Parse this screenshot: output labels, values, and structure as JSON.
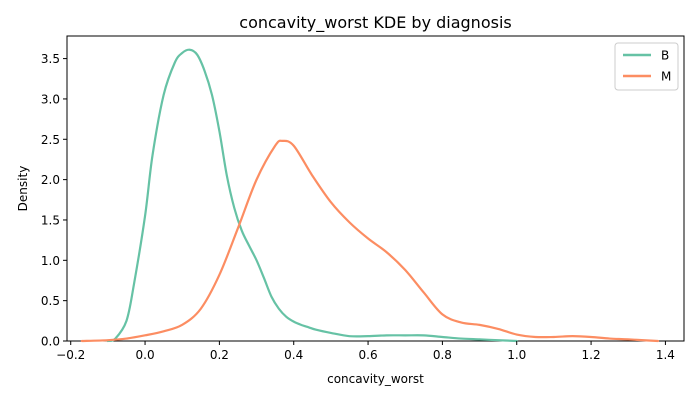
{
  "chart_data": {
    "type": "line",
    "title": "concavity_worst KDE by diagnosis",
    "xlabel": "concavity_worst",
    "ylabel": "Density",
    "xlim": [
      -0.21,
      1.45
    ],
    "ylim": [
      0,
      3.78
    ],
    "xticks": [
      -0.2,
      0.0,
      0.2,
      0.4,
      0.6,
      0.8,
      1.0,
      1.2,
      1.4
    ],
    "xtick_labels": [
      "−0.2",
      "0.0",
      "0.2",
      "0.4",
      "0.6",
      "0.8",
      "1.0",
      "1.2",
      "1.4"
    ],
    "yticks": [
      0,
      0.5,
      1.0,
      1.5,
      2.0,
      2.5,
      3.0,
      3.5
    ],
    "ytick_labels": [
      "0.0",
      "0.5",
      "1.0",
      "1.5",
      "2.0",
      "2.5",
      "3.0",
      "3.5"
    ],
    "grid": false,
    "legend_position": "top-right",
    "series": [
      {
        "name": "B",
        "color": "#66c2a5",
        "x": [
          -0.1,
          -0.08,
          -0.05,
          -0.03,
          0.0,
          0.02,
          0.05,
          0.08,
          0.1,
          0.12,
          0.14,
          0.16,
          0.18,
          0.2,
          0.22,
          0.24,
          0.26,
          0.28,
          0.3,
          0.32,
          0.34,
          0.36,
          0.38,
          0.4,
          0.42,
          0.44,
          0.46,
          0.5,
          0.55,
          0.6,
          0.65,
          0.7,
          0.75,
          0.8,
          0.85,
          0.9,
          0.95,
          1.0
        ],
        "y": [
          0.0,
          0.03,
          0.25,
          0.7,
          1.55,
          2.3,
          3.05,
          3.45,
          3.57,
          3.61,
          3.55,
          3.35,
          3.05,
          2.6,
          2.05,
          1.65,
          1.37,
          1.18,
          1.0,
          0.78,
          0.55,
          0.4,
          0.3,
          0.24,
          0.2,
          0.17,
          0.14,
          0.1,
          0.06,
          0.06,
          0.07,
          0.07,
          0.07,
          0.05,
          0.03,
          0.02,
          0.01,
          0.0
        ]
      },
      {
        "name": "M",
        "color": "#fc8d62",
        "x": [
          -0.17,
          -0.1,
          -0.05,
          0.0,
          0.05,
          0.1,
          0.15,
          0.2,
          0.25,
          0.3,
          0.35,
          0.37,
          0.4,
          0.45,
          0.5,
          0.55,
          0.6,
          0.65,
          0.7,
          0.75,
          0.8,
          0.85,
          0.9,
          0.95,
          1.0,
          1.05,
          1.1,
          1.15,
          1.2,
          1.25,
          1.3,
          1.38
        ],
        "y": [
          0.0,
          0.01,
          0.03,
          0.07,
          0.12,
          0.2,
          0.4,
          0.82,
          1.4,
          2.0,
          2.42,
          2.48,
          2.42,
          2.05,
          1.72,
          1.47,
          1.27,
          1.1,
          0.88,
          0.6,
          0.33,
          0.23,
          0.2,
          0.15,
          0.08,
          0.05,
          0.05,
          0.06,
          0.05,
          0.03,
          0.02,
          0.0
        ]
      }
    ]
  }
}
